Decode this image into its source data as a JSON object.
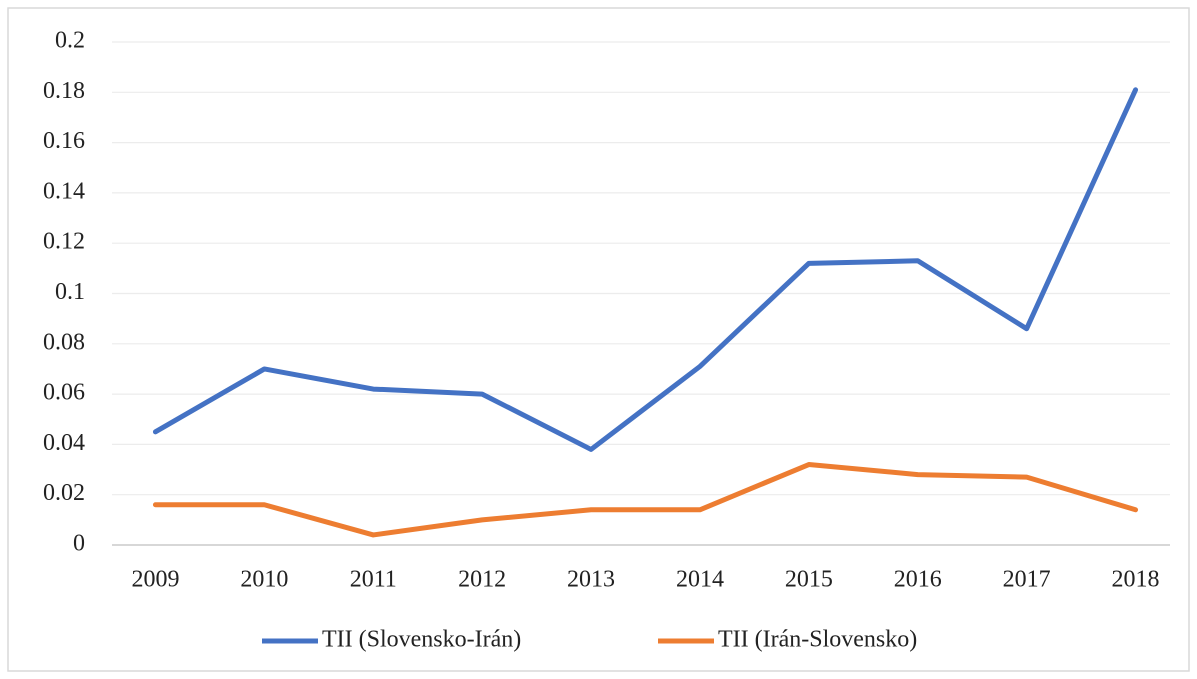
{
  "chart_data": {
    "type": "line",
    "categories": [
      "2009",
      "2010",
      "2011",
      "2012",
      "2013",
      "2014",
      "2015",
      "2016",
      "2017",
      "2018"
    ],
    "series": [
      {
        "name": "TII (Slovensko-Irán)",
        "color": "#4472c4",
        "values": [
          0.045,
          0.07,
          0.062,
          0.06,
          0.038,
          0.071,
          0.112,
          0.113,
          0.086,
          0.181
        ]
      },
      {
        "name": "TII (Irán-Slovensko)",
        "color": "#ed7d31",
        "values": [
          0.016,
          0.016,
          0.004,
          0.01,
          0.014,
          0.014,
          0.032,
          0.028,
          0.027,
          0.014
        ]
      }
    ],
    "ylim": [
      0,
      0.2
    ],
    "yticks": [
      0,
      0.02,
      0.04,
      0.06,
      0.08,
      0.1,
      0.12,
      0.14,
      0.16,
      0.18,
      0.2
    ],
    "grid": true,
    "legend": "bottom"
  }
}
